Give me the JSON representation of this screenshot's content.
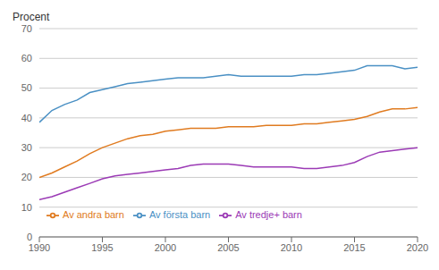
{
  "chart_data": {
    "type": "line",
    "ylabel": "Procent",
    "x": [
      1990,
      1991,
      1992,
      1993,
      1994,
      1995,
      1996,
      1997,
      1998,
      1999,
      2000,
      2001,
      2002,
      2003,
      2004,
      2005,
      2006,
      2007,
      2008,
      2009,
      2010,
      2011,
      2012,
      2013,
      2014,
      2015,
      2016,
      2017,
      2018,
      2019,
      2020
    ],
    "series": [
      {
        "name": "Av första barn",
        "color": "#4a90c4",
        "values": [
          38.5,
          42.5,
          44.5,
          46.0,
          48.5,
          49.5,
          50.5,
          51.5,
          52.0,
          52.5,
          53.0,
          53.5,
          53.5,
          53.5,
          54.0,
          54.5,
          54.0,
          54.0,
          54.0,
          54.0,
          54.0,
          54.5,
          54.5,
          55.0,
          55.5,
          56.0,
          57.5,
          57.5,
          57.5,
          56.5,
          57.0
        ]
      },
      {
        "name": "Av andra barn",
        "color": "#e07b20",
        "values": [
          20.0,
          21.5,
          23.5,
          25.5,
          28.0,
          30.0,
          31.5,
          33.0,
          34.0,
          34.5,
          35.5,
          36.0,
          36.5,
          36.5,
          36.5,
          37.0,
          37.0,
          37.0,
          37.5,
          37.5,
          37.5,
          38.0,
          38.0,
          38.5,
          39.0,
          39.5,
          40.5,
          42.0,
          43.0,
          43.0,
          43.5
        ]
      },
      {
        "name": "Av tredje+ barn",
        "color": "#9b3ab5",
        "values": [
          12.5,
          13.5,
          15.0,
          16.5,
          18.0,
          19.5,
          20.5,
          21.0,
          21.5,
          22.0,
          22.5,
          23.0,
          24.0,
          24.5,
          24.5,
          24.5,
          24.0,
          23.5,
          23.5,
          23.5,
          23.5,
          23.0,
          23.0,
          23.5,
          24.0,
          25.0,
          27.0,
          28.5,
          29.0,
          29.5,
          30.0
        ]
      }
    ],
    "xlim": [
      1990,
      2020
    ],
    "ylim": [
      0,
      70
    ],
    "xticks": [
      1990,
      1995,
      2000,
      2005,
      2010,
      2015,
      2020
    ],
    "yticks": [
      0,
      10,
      20,
      30,
      40,
      50,
      60,
      70
    ],
    "grid": "y",
    "legend": "lower left"
  }
}
